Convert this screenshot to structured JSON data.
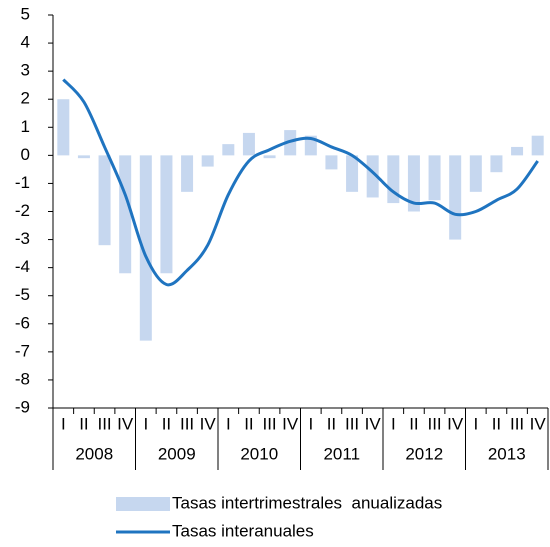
{
  "chart_data": {
    "type": "combo",
    "categories": [
      "I",
      "II",
      "III",
      "IV",
      "I",
      "II",
      "III",
      "IV",
      "I",
      "II",
      "III",
      "IV",
      "I",
      "II",
      "III",
      "IV",
      "I",
      "II",
      "III",
      "IV",
      "I",
      "II",
      "III",
      "IV"
    ],
    "groups": [
      "2008",
      "2009",
      "2010",
      "2011",
      "2012",
      "2013"
    ],
    "series": [
      {
        "name": "Tasas intertrimestrales  anualizadas",
        "type": "bar",
        "color": "#c6d7ef",
        "values": [
          2.0,
          -0.1,
          -3.2,
          -4.2,
          -6.6,
          -4.2,
          -1.3,
          -0.4,
          0.4,
          0.8,
          -0.1,
          0.9,
          0.7,
          -0.5,
          -1.3,
          -1.5,
          -1.7,
          -2.0,
          -1.6,
          -3.0,
          -1.3,
          -0.6,
          0.3,
          0.7
        ]
      },
      {
        "name": "Tasas interanuales",
        "type": "line",
        "color": "#1f74c0",
        "values": [
          2.7,
          1.9,
          0.3,
          -1.4,
          -3.6,
          -4.6,
          -4.1,
          -3.2,
          -1.4,
          -0.2,
          0.2,
          0.5,
          0.6,
          0.3,
          0.0,
          -0.6,
          -1.3,
          -1.7,
          -1.7,
          -2.1,
          -2.0,
          -1.6,
          -1.2,
          -0.2
        ]
      }
    ],
    "ylim": [
      -9,
      5
    ],
    "yticks": [
      -9,
      -8,
      -7,
      -6,
      -5,
      -4,
      -3,
      -2,
      -1,
      0,
      1,
      2,
      3,
      4,
      5
    ],
    "grid": false
  }
}
